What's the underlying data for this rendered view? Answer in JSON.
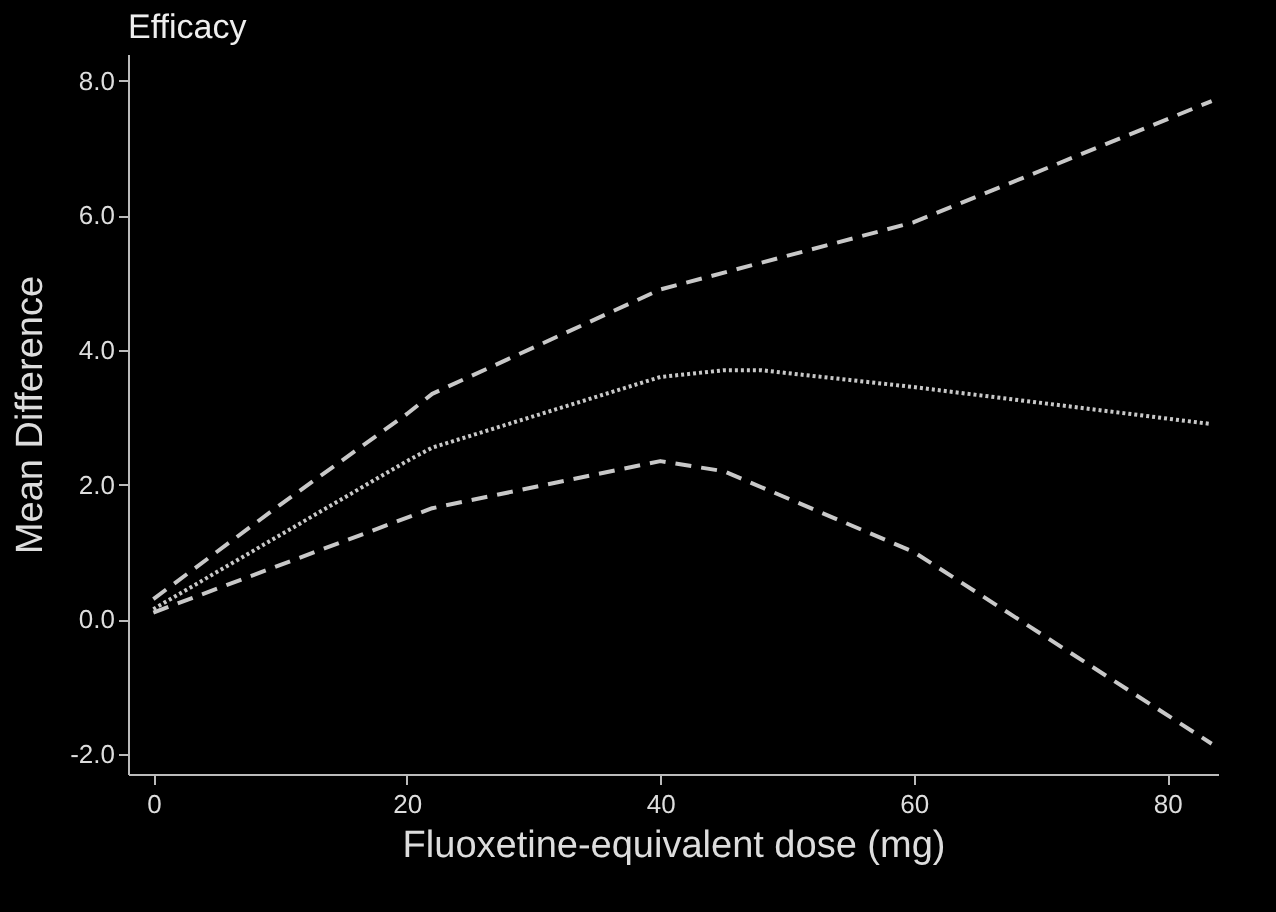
{
  "chart_data": {
    "type": "line",
    "title": "Efficacy",
    "xlabel": "Fluoxetine-equivalent dose (mg)",
    "ylabel": "Mean Difference",
    "xlim": [
      -2,
      84
    ],
    "xticks": [
      0,
      20,
      40,
      60,
      80
    ],
    "ylim": [
      -2.3,
      8.4
    ],
    "yticks": [
      {
        "value": -2,
        "label": "-2.0"
      },
      {
        "value": 0,
        "label": "0.0"
      },
      {
        "value": 2,
        "label": "2.0"
      },
      {
        "value": 4,
        "label": "4.0"
      },
      {
        "value": 6,
        "label": "6.0"
      },
      {
        "value": 8,
        "label": "8.0"
      }
    ],
    "grid": false,
    "marker": "none",
    "series": [
      {
        "color": "#c8c8c8",
        "line_style": "dashed",
        "x": [
          0,
          10,
          20,
          22,
          40,
          60,
          83.5
        ],
        "values": [
          0.3,
          1.7,
          3.05,
          3.35,
          4.9,
          5.9,
          7.7
        ]
      },
      {
        "color": "#c8c8c8",
        "line_style": "dotted",
        "x": [
          0,
          20,
          22,
          40,
          45,
          48,
          60,
          83.5
        ],
        "values": [
          0.15,
          2.35,
          2.55,
          3.6,
          3.7,
          3.7,
          3.45,
          2.9
        ]
      },
      {
        "color": "#c8c8c8",
        "line_style": "dashed",
        "x": [
          0,
          22,
          40,
          45,
          60,
          83.5
        ],
        "values": [
          0.1,
          1.65,
          2.35,
          2.2,
          1.0,
          -1.85
        ]
      }
    ]
  }
}
